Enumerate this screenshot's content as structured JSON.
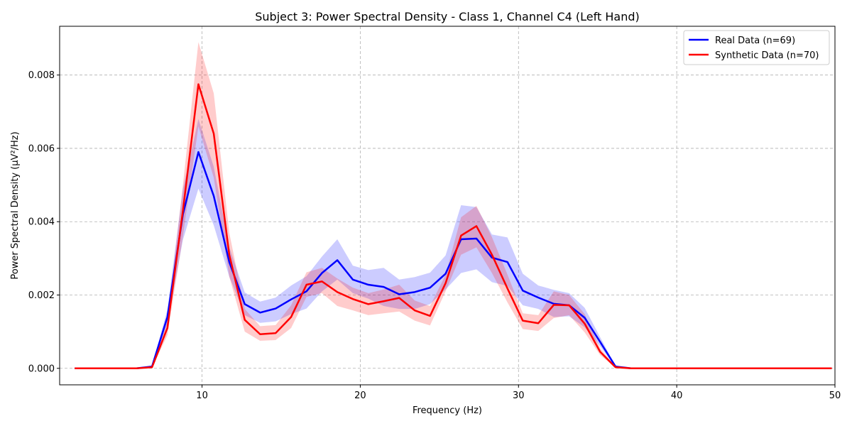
{
  "chart_data": {
    "type": "line",
    "title": "Subject 3: Power Spectral Density - Class 1, Channel C4 (Left Hand)",
    "xlabel": "Frequency (Hz)",
    "ylabel": "Power Spectral Density (μV²/Hz)",
    "xlim": [
      1,
      50
    ],
    "ylim": [
      -0.00045,
      0.00933
    ],
    "xticks": [
      10,
      20,
      30,
      40,
      50
    ],
    "xtick_labels": [
      "10",
      "20",
      "30",
      "40",
      "50"
    ],
    "yticks": [
      0.0,
      0.002,
      0.004,
      0.006,
      0.008
    ],
    "ytick_labels": [
      "0.000",
      "0.002",
      "0.004",
      "0.006",
      "0.008"
    ],
    "grid": true,
    "legend_position": "top-right",
    "x": [
      1.95,
      2.93,
      3.91,
      4.88,
      5.86,
      6.84,
      7.81,
      8.79,
      9.77,
      10.74,
      11.72,
      12.7,
      13.67,
      14.65,
      15.63,
      16.6,
      17.58,
      18.55,
      19.53,
      20.51,
      21.48,
      22.46,
      23.44,
      24.41,
      25.39,
      26.37,
      27.34,
      28.32,
      29.3,
      30.27,
      31.25,
      32.23,
      33.2,
      34.18,
      35.16,
      36.13,
      37.11,
      38.09,
      39.06,
      40.04,
      41.02,
      41.99,
      42.97,
      43.95,
      44.92,
      45.9,
      46.88,
      47.85,
      48.83,
      49.8
    ],
    "series": [
      {
        "name": "Real Data (n=69)",
        "color": "#0000ff",
        "fill_color": "#0000ff",
        "values": [
          0.0,
          0.0,
          0.0,
          0.0,
          0.0,
          5e-05,
          0.0014,
          0.0042,
          0.0059,
          0.0047,
          0.0029,
          0.00175,
          0.00152,
          0.00163,
          0.00188,
          0.0021,
          0.0026,
          0.00295,
          0.00242,
          0.00228,
          0.00222,
          0.00202,
          0.00208,
          0.0022,
          0.00258,
          0.00352,
          0.00354,
          0.00302,
          0.0029,
          0.00212,
          0.00193,
          0.00176,
          0.00172,
          0.00138,
          0.00072,
          5e-05,
          0.0,
          0.0,
          0.0,
          0.0,
          0.0,
          0.0,
          0.0,
          0.0,
          0.0,
          0.0,
          0.0,
          0.0,
          0.0,
          0.0
        ],
        "lower": [
          0.0,
          0.0,
          0.0,
          0.0,
          0.0,
          3e-05,
          0.0012,
          0.0035,
          0.0049,
          0.0039,
          0.0025,
          0.00145,
          0.00124,
          0.00128,
          0.00148,
          0.00163,
          0.0021,
          0.00242,
          0.00205,
          0.0019,
          0.0017,
          0.00162,
          0.00162,
          0.00175,
          0.00215,
          0.0026,
          0.0027,
          0.00235,
          0.00225,
          0.00172,
          0.00162,
          0.0014,
          0.00142,
          0.00112,
          0.0006,
          3e-05,
          0.0,
          0.0,
          0.0,
          0.0,
          0.0,
          0.0,
          0.0,
          0.0,
          0.0,
          0.0,
          0.0,
          0.0,
          0.0,
          0.0
        ],
        "upper": [
          0.0,
          0.0,
          0.0,
          0.0,
          0.0,
          7e-05,
          0.0016,
          0.0049,
          0.0068,
          0.0055,
          0.0033,
          0.00207,
          0.00182,
          0.00193,
          0.00226,
          0.00251,
          0.00305,
          0.00352,
          0.0028,
          0.00268,
          0.00274,
          0.00242,
          0.00249,
          0.00261,
          0.00308,
          0.00445,
          0.0044,
          0.00365,
          0.00357,
          0.00258,
          0.00226,
          0.00214,
          0.00205,
          0.00165,
          0.00085,
          7e-05,
          0.0,
          0.0,
          0.0,
          0.0,
          0.0,
          0.0,
          0.0,
          0.0,
          0.0,
          0.0,
          0.0,
          0.0,
          0.0,
          0.0
        ]
      },
      {
        "name": "Synthetic Data (n=70)",
        "color": "#ff0000",
        "fill_color": "#ff0000",
        "values": [
          0.0,
          0.0,
          0.0,
          0.0,
          0.0,
          3e-05,
          0.0011,
          0.0043,
          0.00775,
          0.0064,
          0.0031,
          0.00132,
          0.00093,
          0.00096,
          0.0014,
          0.00228,
          0.00237,
          0.00208,
          0.00189,
          0.00175,
          0.00183,
          0.00192,
          0.00158,
          0.00143,
          0.00232,
          0.00362,
          0.00388,
          0.0031,
          0.00218,
          0.0013,
          0.00123,
          0.00173,
          0.00172,
          0.00122,
          0.00045,
          3e-05,
          0.0,
          0.0,
          0.0,
          0.0,
          0.0,
          0.0,
          0.0,
          0.0,
          0.0,
          0.0,
          0.0,
          0.0,
          0.0,
          0.0
        ],
        "lower": [
          0.0,
          0.0,
          0.0,
          0.0,
          0.0,
          2e-05,
          0.0009,
          0.0036,
          0.0066,
          0.0052,
          0.0025,
          0.001,
          0.00075,
          0.00077,
          0.0011,
          0.00195,
          0.00205,
          0.0017,
          0.00158,
          0.00145,
          0.0015,
          0.00155,
          0.0013,
          0.00117,
          0.0021,
          0.0031,
          0.0033,
          0.0026,
          0.0018,
          0.00107,
          0.00102,
          0.00137,
          0.00145,
          0.00098,
          0.00036,
          2e-05,
          0.0,
          0.0,
          0.0,
          0.0,
          0.0,
          0.0,
          0.0,
          0.0,
          0.0,
          0.0,
          0.0,
          0.0,
          0.0,
          0.0
        ],
        "upper": [
          0.0,
          0.0,
          0.0,
          0.0,
          0.0,
          4e-05,
          0.0013,
          0.005,
          0.0089,
          0.0075,
          0.0037,
          0.00162,
          0.00115,
          0.00118,
          0.00172,
          0.00262,
          0.00274,
          0.00245,
          0.0022,
          0.00205,
          0.00215,
          0.00228,
          0.00185,
          0.0017,
          0.00255,
          0.00412,
          0.00443,
          0.00358,
          0.00256,
          0.0015,
          0.00145,
          0.0021,
          0.002,
          0.00148,
          0.00055,
          4e-05,
          0.0,
          0.0,
          0.0,
          0.0,
          0.0,
          0.0,
          0.0,
          0.0,
          0.0,
          0.0,
          0.0,
          0.0,
          0.0,
          0.0
        ]
      }
    ]
  }
}
